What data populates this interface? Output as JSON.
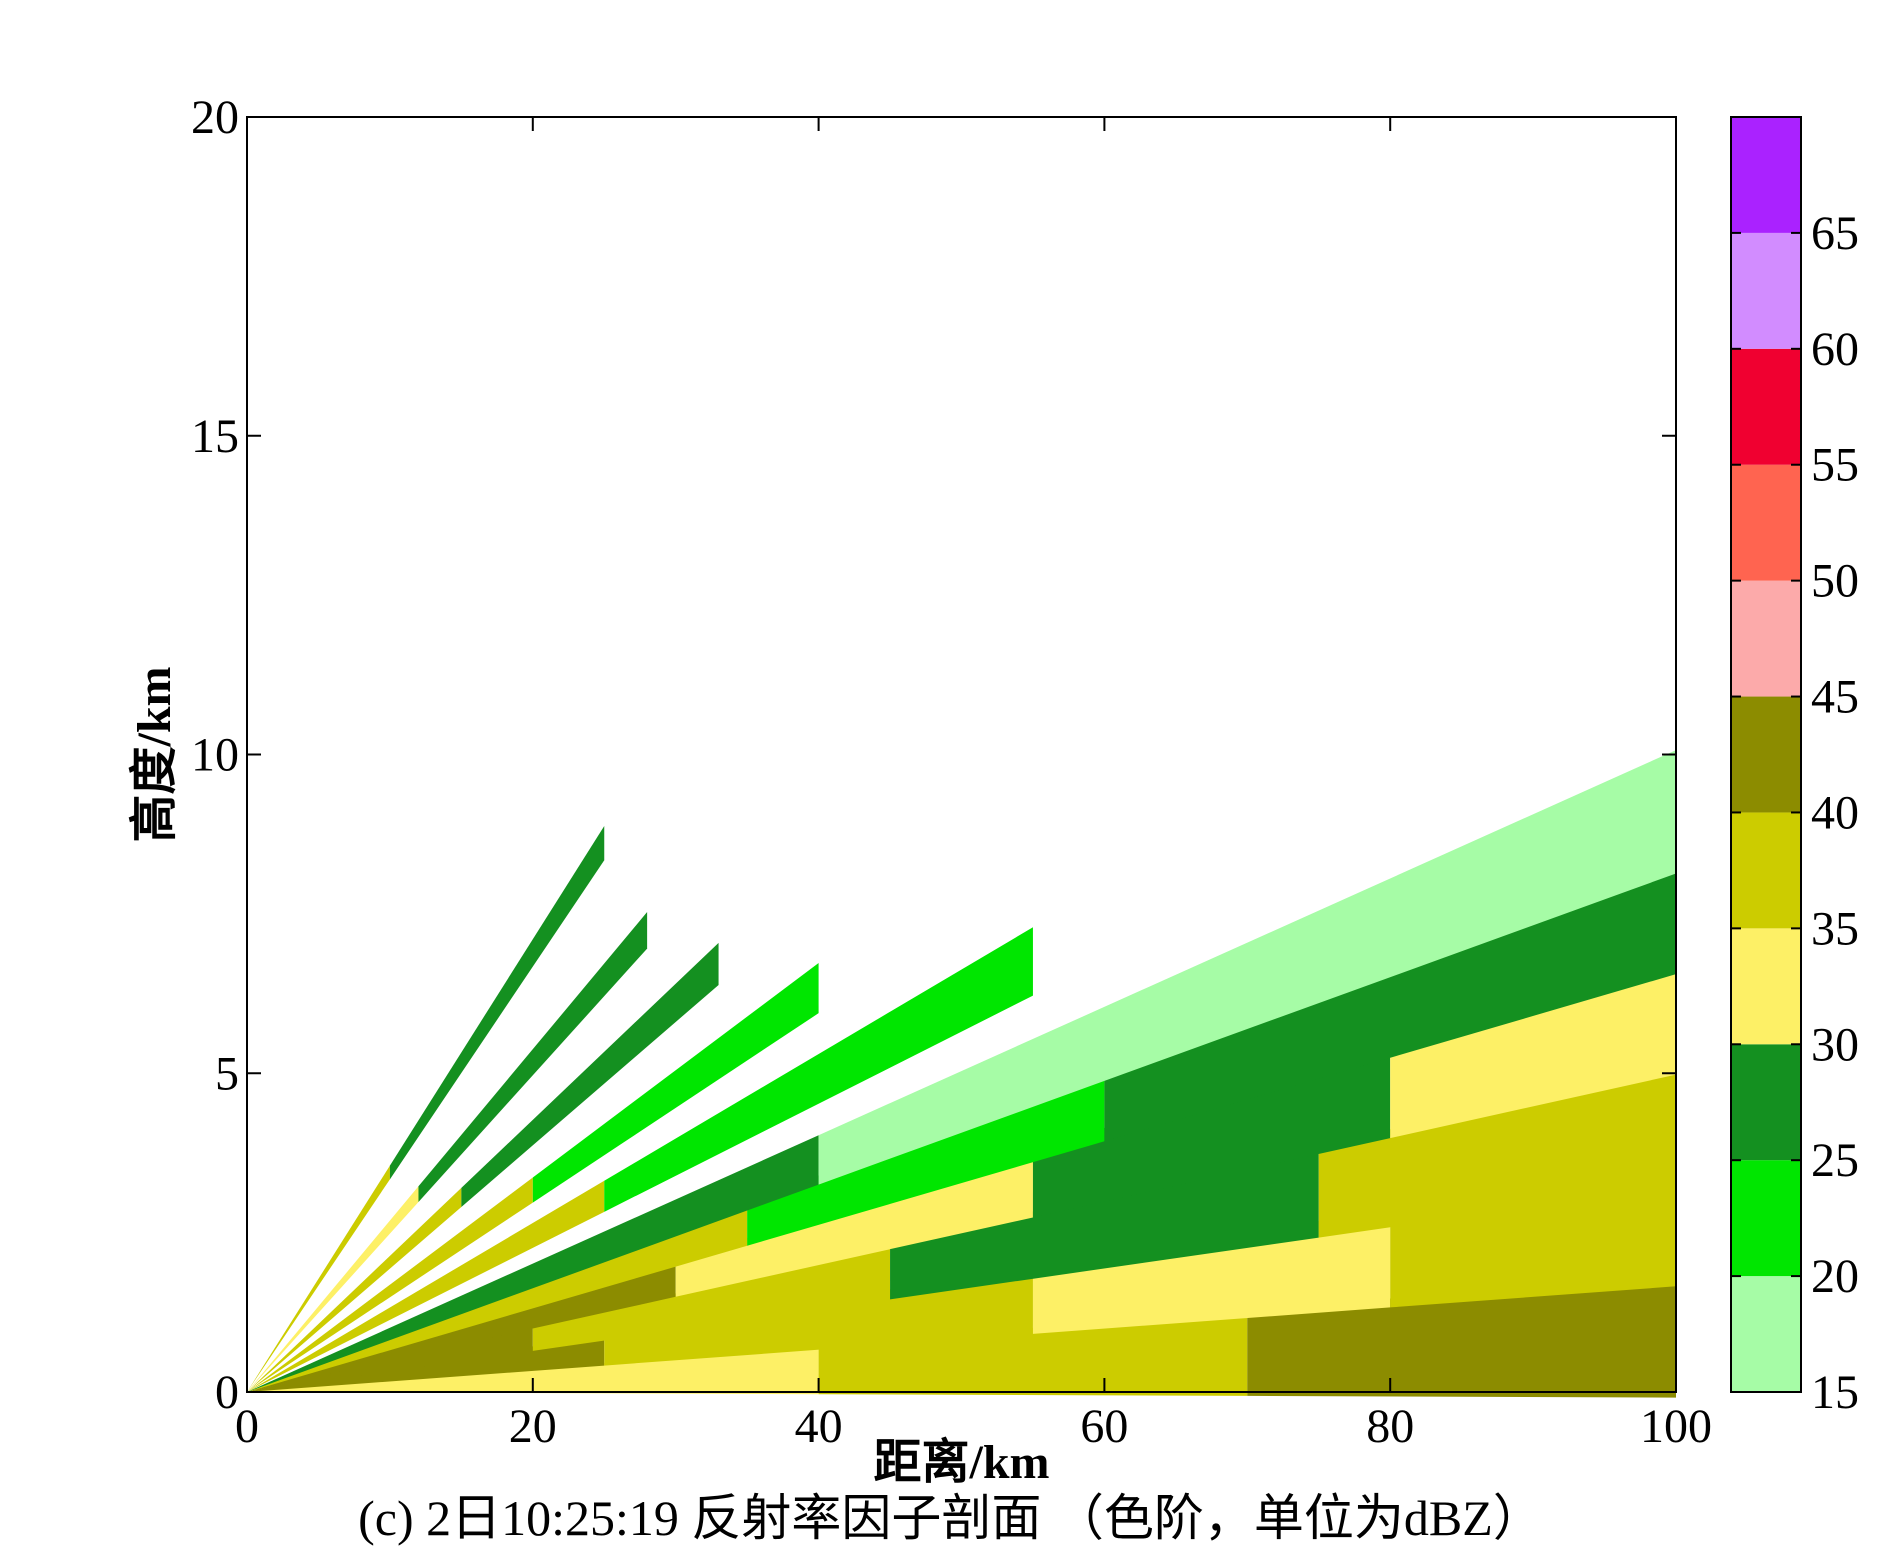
{
  "caption": "(c)  2日10:25:19 反射率因子剖面 （色阶，单位为dBZ）",
  "chart_data": {
    "type": "heatmap",
    "title": "",
    "xlabel": "距离/km",
    "ylabel": "高度/km",
    "xlim": [
      0,
      100
    ],
    "ylim": [
      0,
      20
    ],
    "x_ticks": [
      "0",
      "20",
      "40",
      "60",
      "80",
      "100"
    ],
    "y_ticks": [
      "0",
      "5",
      "10",
      "15",
      "20"
    ],
    "colorbar": {
      "tick_labels": [
        "15",
        "20",
        "25",
        "30",
        "35",
        "40",
        "45",
        "50",
        "55",
        "60",
        "65"
      ],
      "levels": [
        {
          "min": 15,
          "max": 20,
          "color": "#a6fca6"
        },
        {
          "min": 20,
          "max": 25,
          "color": "#00e600"
        },
        {
          "min": 25,
          "max": 30,
          "color": "#149020"
        },
        {
          "min": 30,
          "max": 35,
          "color": "#fdf066"
        },
        {
          "min": 35,
          "max": 40,
          "color": "#cccc00"
        },
        {
          "min": 40,
          "max": 45,
          "color": "#8c8c00"
        },
        {
          "min": 45,
          "max": 50,
          "color": "#fcaaaa"
        },
        {
          "min": 50,
          "max": 55,
          "color": "#ff6450"
        },
        {
          "min": 55,
          "max": 60,
          "color": "#f00030"
        },
        {
          "min": 60,
          "max": 65,
          "color": "#d28cff"
        },
        {
          "min": 65,
          "max": 70,
          "color": "#aa22ff"
        }
      ]
    },
    "beams": [
      {
        "elevation_deg": 0.5,
        "range_km": [
          0,
          100
        ],
        "bands": [
          {
            "x": [
              0,
              40
            ],
            "dbz": 30
          },
          {
            "x": [
              40,
              70
            ],
            "dbz": 35
          },
          {
            "x": [
              70,
              100
            ],
            "dbz": 40
          }
        ]
      },
      {
        "elevation_deg": 1.5,
        "range_km": [
          0,
          100
        ],
        "bands": [
          {
            "x": [
              0,
              25
            ],
            "dbz": 40
          },
          {
            "x": [
              25,
              55
            ],
            "dbz": 35
          },
          {
            "x": [
              55,
              80
            ],
            "dbz": 30
          },
          {
            "x": [
              80,
              100
            ],
            "dbz": 35
          }
        ]
      },
      {
        "elevation_deg": 2.4,
        "range_km": [
          0,
          100
        ],
        "bands": [
          {
            "x": [
              0,
              20
            ],
            "dbz": 40
          },
          {
            "x": [
              20,
              45
            ],
            "dbz": 35
          },
          {
            "x": [
              45,
              75
            ],
            "dbz": 25
          },
          {
            "x": [
              75,
              100
            ],
            "dbz": 35
          }
        ]
      },
      {
        "elevation_deg": 3.4,
        "range_km": [
          0,
          100
        ],
        "bands": [
          {
            "x": [
              0,
              30
            ],
            "dbz": 40
          },
          {
            "x": [
              30,
              55
            ],
            "dbz": 30
          },
          {
            "x": [
              55,
              80
            ],
            "dbz": 25
          },
          {
            "x": [
              80,
              100
            ],
            "dbz": 30
          }
        ]
      },
      {
        "elevation_deg": 4.3,
        "range_km": [
          0,
          100
        ],
        "bands": [
          {
            "x": [
              0,
              35
            ],
            "dbz": 35
          },
          {
            "x": [
              35,
              60
            ],
            "dbz": 20
          },
          {
            "x": [
              60,
              100
            ],
            "dbz": 25
          }
        ]
      },
      {
        "elevation_deg": 5.2,
        "range_km": [
          0,
          100
        ],
        "bands": [
          {
            "x": [
              0,
              40
            ],
            "dbz": 25
          },
          {
            "x": [
              40,
              100
            ],
            "dbz": 15
          }
        ]
      },
      {
        "elevation_deg": 7.0,
        "range_km": [
          0,
          55
        ],
        "bands": [
          {
            "x": [
              0,
              25
            ],
            "dbz": 35
          },
          {
            "x": [
              25,
              55
            ],
            "dbz": 20
          }
        ]
      },
      {
        "elevation_deg": 9.0,
        "range_km": [
          0,
          40
        ],
        "bands": [
          {
            "x": [
              0,
              20
            ],
            "dbz": 35
          },
          {
            "x": [
              20,
              40
            ],
            "dbz": 20
          }
        ]
      },
      {
        "elevation_deg": 11.5,
        "range_km": [
          0,
          33
        ],
        "bands": [
          {
            "x": [
              0,
              15
            ],
            "dbz": 35
          },
          {
            "x": [
              15,
              33
            ],
            "dbz": 25
          }
        ]
      },
      {
        "elevation_deg": 14.5,
        "range_km": [
          0,
          28
        ],
        "bands": [
          {
            "x": [
              0,
              12
            ],
            "dbz": 30
          },
          {
            "x": [
              12,
              28
            ],
            "dbz": 25
          }
        ]
      },
      {
        "elevation_deg": 19.0,
        "range_km": [
          0,
          25
        ],
        "bands": [
          {
            "x": [
              0,
              10
            ],
            "dbz": 35
          },
          {
            "x": [
              10,
              25
            ],
            "dbz": 25
          }
        ]
      }
    ]
  }
}
